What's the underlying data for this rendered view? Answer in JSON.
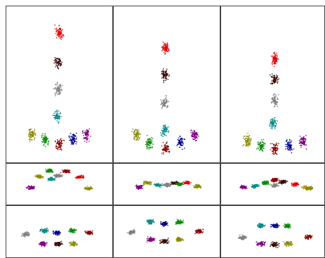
{
  "chart_data": [
    {
      "type": "scatter",
      "xlim": [
        0,
        100
      ],
      "ylim": [
        0,
        100
      ],
      "series": [
        {
          "color": "#e00000",
          "x": [
            50
          ],
          "y": [
            83
          ]
        },
        {
          "color": "#3a0a0a",
          "x": [
            49
          ],
          "y": [
            64
          ]
        },
        {
          "color": "#808080",
          "x": [
            49
          ],
          "y": [
            47
          ]
        },
        {
          "color": "#0a8a8a",
          "x": [
            48
          ],
          "y": [
            30
          ]
        },
        {
          "color": "#8a8a00",
          "x": [
            24
          ],
          "y": [
            18
          ]
        },
        {
          "color": "#0a8a0a",
          "x": [
            37
          ],
          "y": [
            15
          ]
        },
        {
          "color": "#8a0000",
          "x": [
            50
          ],
          "y": [
            12
          ]
        },
        {
          "color": "#00008a",
          "x": [
            63
          ],
          "y": [
            15
          ]
        },
        {
          "color": "#800080",
          "x": [
            75
          ],
          "y": [
            18
          ]
        }
      ]
    },
    {
      "type": "scatter",
      "xlim": [
        0,
        100
      ],
      "ylim": [
        0,
        100
      ],
      "series": [
        {
          "color": "#e00000",
          "x": [
            49
          ],
          "y": [
            73
          ]
        },
        {
          "color": "#3a0a0a",
          "x": [
            48
          ],
          "y": [
            56
          ]
        },
        {
          "color": "#808080",
          "x": [
            48
          ],
          "y": [
            38
          ]
        },
        {
          "color": "#0a8a8a",
          "x": [
            48
          ],
          "y": [
            21
          ]
        },
        {
          "color": "#8a8a00",
          "x": [
            22
          ],
          "y": [
            18
          ]
        },
        {
          "color": "#0a8a0a",
          "x": [
            34
          ],
          "y": [
            13
          ]
        },
        {
          "color": "#8a0000",
          "x": [
            49
          ],
          "y": [
            9
          ]
        },
        {
          "color": "#00008a",
          "x": [
            63
          ],
          "y": [
            13
          ]
        },
        {
          "color": "#800080",
          "x": [
            76
          ],
          "y": [
            18
          ]
        }
      ]
    },
    {
      "type": "scatter",
      "xlim": [
        0,
        100
      ],
      "ylim": [
        0,
        100
      ],
      "series": [
        {
          "color": "#e00000",
          "x": [
            52
          ],
          "y": [
            66
          ]
        },
        {
          "color": "#3a0a0a",
          "x": [
            52
          ],
          "y": [
            53
          ]
        },
        {
          "color": "#808080",
          "x": [
            52
          ],
          "y": [
            40
          ]
        },
        {
          "color": "#0a8a8a",
          "x": [
            50
          ],
          "y": [
            25
          ]
        },
        {
          "color": "#8a8a00",
          "x": [
            26
          ],
          "y": [
            14
          ]
        },
        {
          "color": "#0a8a0a",
          "x": [
            39
          ],
          "y": [
            11
          ]
        },
        {
          "color": "#8a0000",
          "x": [
            52
          ],
          "y": [
            9
          ]
        },
        {
          "color": "#00008a",
          "x": [
            66
          ],
          "y": [
            11
          ]
        },
        {
          "color": "#800080",
          "x": [
            79
          ],
          "y": [
            13
          ]
        }
      ]
    },
    {
      "type": "scatter",
      "xlim": [
        0,
        100
      ],
      "ylim": [
        0,
        100
      ],
      "series": [
        {
          "color": "#8a8a00",
          "x": [
            31
          ],
          "y": [
            68
          ]
        },
        {
          "color": "#0a8a0a",
          "x": [
            41
          ],
          "y": [
            82
          ]
        },
        {
          "color": "#0a8a8a",
          "x": [
            43
          ],
          "y": [
            62
          ]
        },
        {
          "color": "#8a0000",
          "x": [
            56
          ],
          "y": [
            80
          ]
        },
        {
          "color": "#808080",
          "x": [
            49
          ],
          "y": [
            70
          ]
        },
        {
          "color": "#800080",
          "x": [
            24
          ],
          "y": [
            42
          ]
        },
        {
          "color": "#e00000",
          "x": [
            69
          ],
          "y": [
            67
          ]
        },
        {
          "color": "#8a8a00",
          "x": [
            77
          ],
          "y": [
            40
          ]
        }
      ]
    },
    {
      "type": "scatter",
      "xlim": [
        0,
        100
      ],
      "ylim": [
        0,
        100
      ],
      "series": [
        {
          "color": "#8a8a00",
          "x": [
            32
          ],
          "y": [
            53
          ]
        },
        {
          "color": "#800080",
          "x": [
            24
          ],
          "y": [
            43
          ]
        },
        {
          "color": "#0a8a8a",
          "x": [
            42
          ],
          "y": [
            48
          ]
        },
        {
          "color": "#808080",
          "x": [
            50
          ],
          "y": [
            48
          ]
        },
        {
          "color": "#3a0a0a",
          "x": [
            58
          ],
          "y": [
            52
          ]
        },
        {
          "color": "#0a8a0a",
          "x": [
            62
          ],
          "y": [
            50
          ]
        },
        {
          "color": "#e00000",
          "x": [
            69
          ],
          "y": [
            53
          ]
        },
        {
          "color": "#8a8a00",
          "x": [
            79
          ],
          "y": [
            45
          ]
        }
      ]
    },
    {
      "type": "scatter",
      "xlim": [
        0,
        100
      ],
      "ylim": [
        0,
        100
      ],
      "series": [
        {
          "color": "#800080",
          "x": [
            22
          ],
          "y": [
            43
          ]
        },
        {
          "color": "#0a8a8a",
          "x": [
            33
          ],
          "y": [
            45
          ]
        },
        {
          "color": "#0a8a0a",
          "x": [
            43
          ],
          "y": [
            53
          ]
        },
        {
          "color": "#808080",
          "x": [
            52
          ],
          "y": [
            47
          ]
        },
        {
          "color": "#8a0000",
          "x": [
            52
          ],
          "y": [
            60
          ]
        },
        {
          "color": "#3a0a0a",
          "x": [
            60
          ],
          "y": [
            55
          ]
        },
        {
          "color": "#e00000",
          "x": [
            72
          ],
          "y": [
            50
          ]
        },
        {
          "color": "#d09020",
          "x": [
            81
          ],
          "y": [
            42
          ]
        },
        {
          "color": "#8a8a00",
          "x": [
            85
          ],
          "y": [
            40
          ]
        }
      ]
    },
    {
      "type": "scatter",
      "xlim": [
        0,
        100
      ],
      "ylim": [
        0,
        100
      ],
      "series": [
        {
          "color": "#808080",
          "x": [
            19
          ],
          "y": [
            45
          ]
        },
        {
          "color": "#0a8a8a",
          "x": [
            36
          ],
          "y": [
            52
          ]
        },
        {
          "color": "#00008a",
          "x": [
            48
          ],
          "y": [
            48
          ]
        },
        {
          "color": "#0a8a0a",
          "x": [
            62
          ],
          "y": [
            52
          ]
        },
        {
          "color": "#8a0000",
          "x": [
            78
          ],
          "y": [
            48
          ]
        },
        {
          "color": "#800080",
          "x": [
            35
          ],
          "y": [
            27
          ]
        },
        {
          "color": "#3a0a0a",
          "x": [
            49
          ],
          "y": [
            27
          ]
        },
        {
          "color": "#8a8a00",
          "x": [
            63
          ],
          "y": [
            27
          ]
        }
      ]
    },
    {
      "type": "scatter",
      "xlim": [
        0,
        100
      ],
      "ylim": [
        0,
        100
      ],
      "series": [
        {
          "color": "#808080",
          "x": [
            18
          ],
          "y": [
            49
          ]
        },
        {
          "color": "#0a8a8a",
          "x": [
            35
          ],
          "y": [
            69
          ]
        },
        {
          "color": "#00008a",
          "x": [
            48
          ],
          "y": [
            65
          ]
        },
        {
          "color": "#0a8a0a",
          "x": [
            62
          ],
          "y": [
            68
          ]
        },
        {
          "color": "#8a0000",
          "x": [
            80
          ],
          "y": [
            51
          ]
        },
        {
          "color": "#800080",
          "x": [
            35
          ],
          "y": [
            35
          ]
        },
        {
          "color": "#3a0a0a",
          "x": [
            48
          ],
          "y": [
            32
          ]
        },
        {
          "color": "#8a8a00",
          "x": [
            62
          ],
          "y": [
            35
          ]
        }
      ]
    },
    {
      "type": "scatter",
      "xlim": [
        0,
        100
      ],
      "ylim": [
        0,
        100
      ],
      "series": [
        {
          "color": "#808080",
          "x": [
            21
          ],
          "y": [
            39
          ]
        },
        {
          "color": "#0a8a8a",
          "x": [
            39
          ],
          "y": [
            61
          ]
        },
        {
          "color": "#00008a",
          "x": [
            52
          ],
          "y": [
            61
          ]
        },
        {
          "color": "#0a8a0a",
          "x": [
            64
          ],
          "y": [
            61
          ]
        },
        {
          "color": "#8a0000",
          "x": [
            84
          ],
          "y": [
            40
          ]
        },
        {
          "color": "#800080",
          "x": [
            39
          ],
          "y": [
            27
          ]
        },
        {
          "color": "#3a0a0a",
          "x": [
            52
          ],
          "y": [
            25
          ]
        },
        {
          "color": "#8a8a00",
          "x": [
            65
          ],
          "y": [
            27
          ]
        }
      ]
    }
  ]
}
